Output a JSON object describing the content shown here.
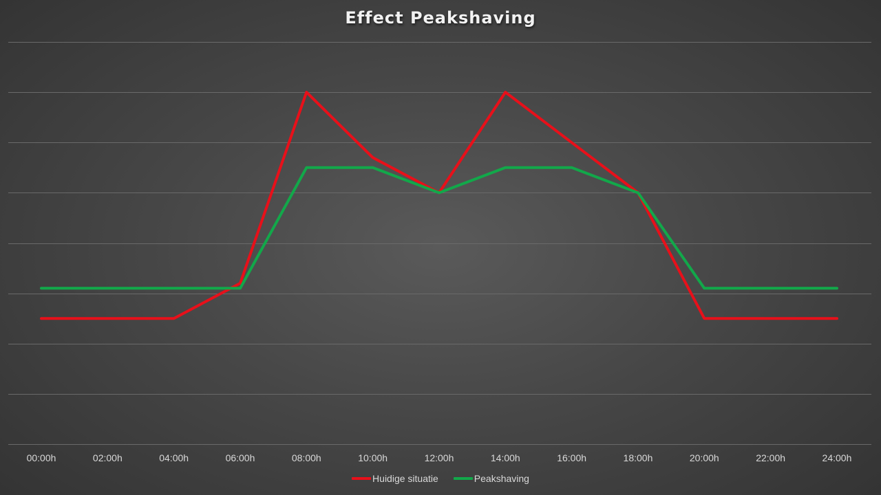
{
  "chart_data": {
    "type": "line",
    "title": "Effect Peakshaving",
    "categories": [
      "00:00h",
      "02:00h",
      "04:00h",
      "06:00h",
      "08:00h",
      "10:00h",
      "12:00h",
      "14:00h",
      "16:00h",
      "18:00h",
      "20:00h",
      "22:00h",
      "24:00h"
    ],
    "ylim": [
      0,
      8
    ],
    "grid": true,
    "y_tick_labels_shown": false,
    "legend_position": "bottom",
    "series": [
      {
        "name": "Huidige situatie",
        "color": "#e8101a",
        "values": [
          2.5,
          2.5,
          2.5,
          3.2,
          7.0,
          5.7,
          5.0,
          7.0,
          6.0,
          5.0,
          2.5,
          2.5,
          2.5
        ]
      },
      {
        "name": "Peakshaving",
        "color": "#12a84a",
        "values": [
          3.1,
          3.1,
          3.1,
          3.1,
          5.5,
          5.5,
          5.0,
          5.5,
          5.5,
          5.0,
          3.1,
          3.1,
          3.1
        ]
      }
    ]
  }
}
